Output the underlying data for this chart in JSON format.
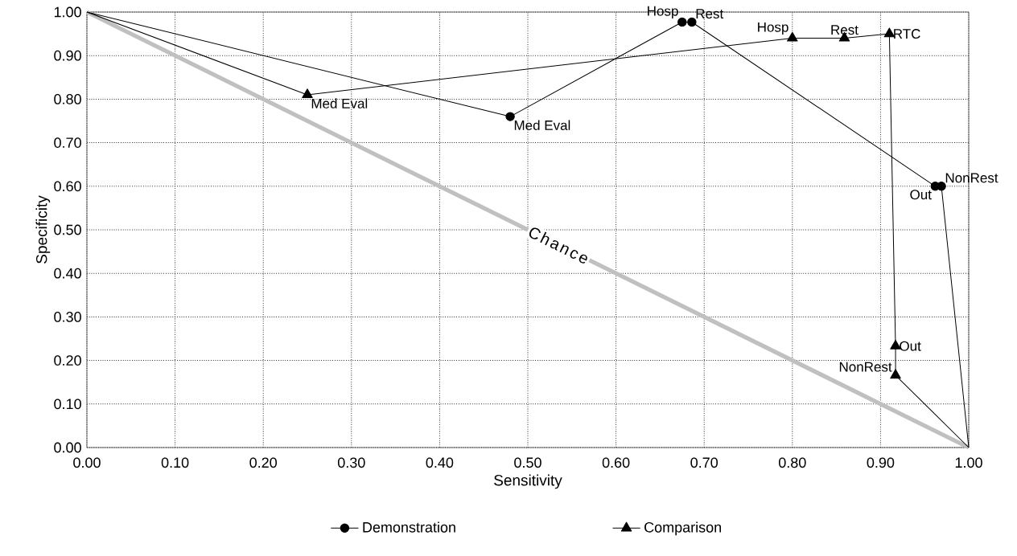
{
  "chart_data": {
    "type": "line",
    "xlabel": "Sensitivity",
    "ylabel": "Specificity",
    "xlim": [
      0,
      1
    ],
    "ylim": [
      0,
      1
    ],
    "xticks": [
      {
        "value": 0,
        "label": "0.00"
      },
      {
        "value": 0.1,
        "label": "0.10"
      },
      {
        "value": 0.2,
        "label": "0.20"
      },
      {
        "value": 0.3,
        "label": "0.30"
      },
      {
        "value": 0.4,
        "label": "0.40"
      },
      {
        "value": 0.5,
        "label": "0.50"
      },
      {
        "value": 0.6,
        "label": "0.60"
      },
      {
        "value": 0.7,
        "label": "0.70"
      },
      {
        "value": 0.8,
        "label": "0.80"
      },
      {
        "value": 0.9,
        "label": "0.90"
      },
      {
        "value": 1,
        "label": "1.00"
      }
    ],
    "yticks": [
      {
        "value": 0,
        "label": "0.00"
      },
      {
        "value": 0.1,
        "label": "0.10"
      },
      {
        "value": 0.2,
        "label": "0.20"
      },
      {
        "value": 0.3,
        "label": "0.30"
      },
      {
        "value": 0.4,
        "label": "0.40"
      },
      {
        "value": 0.5,
        "label": "0.50"
      },
      {
        "value": 0.6,
        "label": "0.60"
      },
      {
        "value": 0.7,
        "label": "0.70"
      },
      {
        "value": 0.8,
        "label": "0.80"
      },
      {
        "value": 0.9,
        "label": "0.90"
      },
      {
        "value": 1,
        "label": "1.00"
      }
    ],
    "grid": true,
    "legend": "bottom",
    "series": [
      {
        "name": "Chance",
        "color": "#c0c0c0",
        "marker": "none",
        "x": [
          0,
          1
        ],
        "values": [
          1,
          0
        ]
      },
      {
        "name": "Demonstration",
        "color": "#000000",
        "marker": "circle",
        "x": [
          0,
          0.48,
          0.675,
          0.686,
          0.962,
          0.969,
          1
        ],
        "values": [
          1,
          0.76,
          0.977,
          0.977,
          0.6,
          0.6,
          0
        ]
      },
      {
        "name": "Comparison",
        "color": "#000000",
        "marker": "triangle",
        "x": [
          0,
          0.25,
          0.8,
          0.859,
          0.91,
          0.917,
          0.917,
          1
        ],
        "values": [
          1,
          0.81,
          0.94,
          0.94,
          0.95,
          0.233,
          0.166,
          0
        ]
      }
    ],
    "annotations": [
      {
        "text": "Med Eval",
        "x": 0.48,
        "y": 0.76
      },
      {
        "text": "Hosp",
        "x": 0.675,
        "y": 0.977
      },
      {
        "text": "Rest",
        "x": 0.686,
        "y": 0.977
      },
      {
        "text": "Out",
        "x": 0.962,
        "y": 0.6
      },
      {
        "text": "NonRest",
        "x": 0.969,
        "y": 0.6
      },
      {
        "text": "Med Eval",
        "x": 0.25,
        "y": 0.81
      },
      {
        "text": "Hosp",
        "x": 0.8,
        "y": 0.94
      },
      {
        "text": "Rest",
        "x": 0.859,
        "y": 0.94
      },
      {
        "text": "RTC",
        "x": 0.91,
        "y": 0.95
      },
      {
        "text": "Out",
        "x": 0.917,
        "y": 0.233
      },
      {
        "text": "NonRest",
        "x": 0.917,
        "y": 0.166
      }
    ]
  }
}
